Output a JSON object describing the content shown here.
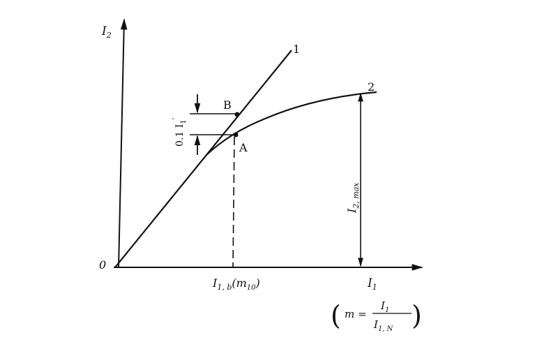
{
  "diagram": {
    "y_axis_label": "I",
    "y_axis_sub": "2",
    "x_axis_label": "I",
    "x_axis_sub": "1",
    "origin_label": "0",
    "curve1_label": "1",
    "curve2_label": "2",
    "point_a_label": "A",
    "point_b_label": "B",
    "delta_label": "0.1 I",
    "delta_sub": "1",
    "delta_prime": "′",
    "i2max_label": "I",
    "i2max_sub": "2, max",
    "x_mark_label": "I",
    "x_mark_sub": "1, b",
    "x_mark_paren": "(m",
    "x_mark_paren_sub": "10",
    "x_mark_close": ")",
    "formula_m": "m =",
    "formula_num": "I",
    "formula_num_sub": "1",
    "formula_den": "I",
    "formula_den_sub": "1, N"
  }
}
